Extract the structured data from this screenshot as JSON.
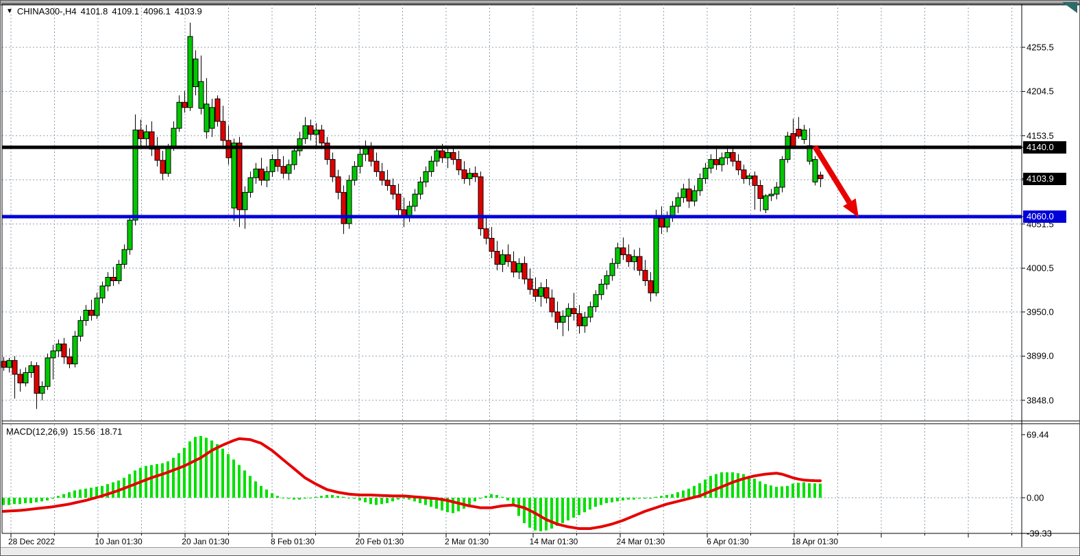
{
  "header": {
    "dropdown_icon": "▼",
    "symbol": "CHINA300-,H4",
    "open": "4101.8",
    "high": "4109.1",
    "low": "4096.1",
    "close": "4103.9"
  },
  "macd_panel": {
    "label": "MACD(12,26,9)",
    "main_value": "15.56",
    "signal_value": "18.71",
    "axis_labels": [
      {
        "text": "69.44",
        "value": 69.44
      },
      {
        "text": "0.00",
        "value": 0
      },
      {
        "text": "-39.33",
        "value": -39.33
      }
    ]
  },
  "price_axis": {
    "labels": [
      {
        "text": "4255.5",
        "price": 4255.5
      },
      {
        "text": "4204.5",
        "price": 4204.5
      },
      {
        "text": "4153.5",
        "price": 4153.5
      },
      {
        "text": "4051.5",
        "price": 4051.5
      },
      {
        "text": "4000.5",
        "price": 4000.5
      },
      {
        "text": "3950.0",
        "price": 3950.0
      },
      {
        "text": "3899.0",
        "price": 3899.0
      },
      {
        "text": "3848.0",
        "price": 3848.0
      }
    ],
    "tags": [
      {
        "text": "4140.0",
        "price": 4140.0,
        "bg": "#000000"
      },
      {
        "text": "4103.9",
        "price": 4103.9,
        "bg": "#000000"
      },
      {
        "text": "4060.0",
        "price": 4060.0,
        "bg": "#0000d8"
      }
    ]
  },
  "colors": {
    "bull": "#00c800",
    "bear": "#e00000",
    "wick": "#000000",
    "grid": "#8e9dad",
    "macd_hist": "#00e000",
    "macd_signal": "#e60000",
    "hline_black": "#000000",
    "hline_blue": "#0000d8",
    "arrow": "#e80000"
  },
  "chart_data": {
    "type": "candlestick",
    "symbol": "CHINA300-",
    "timeframe": "H4",
    "x_labels": [
      "28 Dec 2022",
      "10 Jan 01:30",
      "20 Jan 01:30",
      "8 Feb 01:30",
      "20 Feb 01:30",
      "2 Mar 01:30",
      "14 Mar 01:30",
      "24 Mar 01:30",
      "6 Apr 01:30",
      "18 Apr 01:30"
    ],
    "price_gridlines": [
      4255.5,
      4204.5,
      4153.5,
      4102.5,
      4051.5,
      4000.5,
      3950.0,
      3899.0,
      3848.0
    ],
    "visible_price_range": [
      3838,
      4290
    ],
    "hlines": [
      {
        "price": 4140.0,
        "color": "#000000",
        "width": 5
      },
      {
        "price": 4060.0,
        "color": "#0000d8",
        "width": 5
      }
    ],
    "arrow_annotation": {
      "from_bar": 148,
      "from_price": 4141,
      "to_bar": 156,
      "to_price": 4059
    },
    "candles_ohlc": [
      [
        3893,
        3898,
        3882,
        3886
      ],
      [
        3886,
        3897,
        3880,
        3894
      ],
      [
        3894,
        3899,
        3850,
        3878
      ],
      [
        3878,
        3884,
        3858,
        3868
      ],
      [
        3868,
        3886,
        3864,
        3880
      ],
      [
        3880,
        3893,
        3874,
        3888
      ],
      [
        3888,
        3892,
        3838,
        3856
      ],
      [
        3856,
        3870,
        3848,
        3864
      ],
      [
        3864,
        3902,
        3860,
        3897
      ],
      [
        3897,
        3912,
        3872,
        3905
      ],
      [
        3905,
        3918,
        3898,
        3913
      ],
      [
        3913,
        3920,
        3890,
        3898
      ],
      [
        3898,
        3908,
        3885,
        3890
      ],
      [
        3890,
        3928,
        3886,
        3922
      ],
      [
        3922,
        3945,
        3916,
        3940
      ],
      [
        3940,
        3958,
        3934,
        3952
      ],
      [
        3952,
        3964,
        3940,
        3946
      ],
      [
        3946,
        3972,
        3942,
        3966
      ],
      [
        3966,
        3985,
        3960,
        3980
      ],
      [
        3980,
        3996,
        3974,
        3990
      ],
      [
        3990,
        4002,
        3980,
        3986
      ],
      [
        3986,
        4010,
        3982,
        4005
      ],
      [
        4005,
        4028,
        4000,
        4022
      ],
      [
        4022,
        4062,
        4016,
        4056
      ],
      [
        4056,
        4178,
        4050,
        4160
      ],
      [
        4160,
        4172,
        4138,
        4150
      ],
      [
        4150,
        4166,
        4142,
        4158
      ],
      [
        4158,
        4170,
        4130,
        4138
      ],
      [
        4138,
        4152,
        4118,
        4125
      ],
      [
        4125,
        4136,
        4102,
        4110
      ],
      [
        4110,
        4144,
        4106,
        4140
      ],
      [
        4140,
        4170,
        4136,
        4162
      ],
      [
        4162,
        4200,
        4158,
        4192
      ],
      [
        4192,
        4205,
        4180,
        4186
      ],
      [
        4186,
        4284,
        4182,
        4268
      ],
      [
        4210,
        4252,
        4200,
        4242
      ],
      [
        4185,
        4246,
        4178,
        4216
      ],
      [
        4158,
        4220,
        4150,
        4190
      ],
      [
        4162,
        4196,
        4152,
        4186
      ],
      [
        4196,
        4200,
        4164,
        4170
      ],
      [
        4170,
        4188,
        4140,
        4148
      ],
      [
        4148,
        4165,
        4120,
        4128
      ],
      [
        4070,
        4150,
        4055,
        4145
      ],
      [
        4145,
        4152,
        4048,
        4068
      ],
      [
        4068,
        4095,
        4046,
        4088
      ],
      [
        4088,
        4112,
        4082,
        4105
      ],
      [
        4105,
        4122,
        4098,
        4115
      ],
      [
        4115,
        4128,
        4096,
        4102
      ],
      [
        4102,
        4118,
        4094,
        4112
      ],
      [
        4112,
        4132,
        4106,
        4126
      ],
      [
        4126,
        4138,
        4112,
        4118
      ],
      [
        4118,
        4130,
        4104,
        4110
      ],
      [
        4110,
        4126,
        4102,
        4120
      ],
      [
        4120,
        4142,
        4114,
        4136
      ],
      [
        4136,
        4158,
        4130,
        4150
      ],
      [
        4150,
        4175,
        4144,
        4165
      ],
      [
        4165,
        4172,
        4148,
        4155
      ],
      [
        4155,
        4168,
        4142,
        4160
      ],
      [
        4160,
        4166,
        4138,
        4145
      ],
      [
        4145,
        4152,
        4120,
        4126
      ],
      [
        4126,
        4134,
        4100,
        4106
      ],
      [
        4106,
        4114,
        4080,
        4088
      ],
      [
        4088,
        4096,
        4040,
        4052
      ],
      [
        4052,
        4108,
        4046,
        4102
      ],
      [
        4102,
        4124,
        4096,
        4118
      ],
      [
        4118,
        4140,
        4110,
        4132
      ],
      [
        4132,
        4148,
        4124,
        4140
      ],
      [
        4140,
        4146,
        4118,
        4124
      ],
      [
        4124,
        4134,
        4106,
        4112
      ],
      [
        4112,
        4122,
        4096,
        4102
      ],
      [
        4102,
        4114,
        4090,
        4096
      ],
      [
        4096,
        4104,
        4080,
        4086
      ],
      [
        4086,
        4098,
        4060,
        4068
      ],
      [
        4068,
        4082,
        4048,
        4060
      ],
      [
        4060,
        4078,
        4054,
        4072
      ],
      [
        4072,
        4092,
        4066,
        4086
      ],
      [
        4086,
        4106,
        4080,
        4100
      ],
      [
        4100,
        4118,
        4094,
        4112
      ],
      [
        4112,
        4130,
        4106,
        4124
      ],
      [
        4124,
        4142,
        4118,
        4136
      ],
      [
        4136,
        4144,
        4122,
        4128
      ],
      [
        4128,
        4140,
        4116,
        4134
      ],
      [
        4134,
        4142,
        4120,
        4126
      ],
      [
        4126,
        4136,
        4108,
        4114
      ],
      [
        4114,
        4124,
        4098,
        4104
      ],
      [
        4104,
        4116,
        4096,
        4110
      ],
      [
        4110,
        4118,
        4100,
        4106
      ],
      [
        4106,
        4112,
        4038,
        4046
      ],
      [
        4046,
        4060,
        4028,
        4035
      ],
      [
        4035,
        4048,
        4012,
        4020
      ],
      [
        4020,
        4032,
        3998,
        4005
      ],
      [
        4005,
        4022,
        3996,
        4016
      ],
      [
        4016,
        4028,
        4002,
        4008
      ],
      [
        4008,
        4020,
        3990,
        3996
      ],
      [
        3996,
        4012,
        3988,
        4006
      ],
      [
        4006,
        4014,
        3982,
        3988
      ],
      [
        3988,
        4000,
        3970,
        3976
      ],
      [
        3976,
        3990,
        3962,
        3968
      ],
      [
        3968,
        3984,
        3956,
        3978
      ],
      [
        3978,
        3988,
        3960,
        3966
      ],
      [
        3966,
        3976,
        3944,
        3950
      ],
      [
        3950,
        3962,
        3930,
        3938
      ],
      [
        3938,
        3952,
        3922,
        3945
      ],
      [
        3945,
        3960,
        3928,
        3954
      ],
      [
        3954,
        3972,
        3940,
        3948
      ],
      [
        3948,
        3958,
        3925,
        3934
      ],
      [
        3934,
        3950,
        3926,
        3944
      ],
      [
        3944,
        3962,
        3938,
        3956
      ],
      [
        3956,
        3975,
        3950,
        3970
      ],
      [
        3970,
        3988,
        3964,
        3982
      ],
      [
        3982,
        3998,
        3976,
        3992
      ],
      [
        3992,
        4012,
        3986,
        4006
      ],
      [
        4006,
        4030,
        4000,
        4024
      ],
      [
        4024,
        4036,
        4010,
        4016
      ],
      [
        4016,
        4028,
        4002,
        4008
      ],
      [
        4008,
        4022,
        3998,
        4014
      ],
      [
        4014,
        4024,
        3992,
        3998
      ],
      [
        3998,
        4010,
        3980,
        3986
      ],
      [
        3986,
        3996,
        3962,
        3972
      ],
      [
        3972,
        4068,
        3968,
        4058
      ],
      [
        4058,
        4072,
        4040,
        4048
      ],
      [
        4048,
        4066,
        4042,
        4060
      ],
      [
        4060,
        4078,
        4054,
        4072
      ],
      [
        4072,
        4088,
        4064,
        4082
      ],
      [
        4082,
        4098,
        4076,
        4092
      ],
      [
        4092,
        4104,
        4070,
        4078
      ],
      [
        4078,
        4096,
        4072,
        4090
      ],
      [
        4090,
        4110,
        4084,
        4104
      ],
      [
        4104,
        4122,
        4098,
        4116
      ],
      [
        4116,
        4132,
        4110,
        4126
      ],
      [
        4126,
        4138,
        4114,
        4120
      ],
      [
        4120,
        4134,
        4112,
        4128
      ],
      [
        4128,
        4142,
        4120,
        4134
      ],
      [
        4134,
        4140,
        4118,
        4124
      ],
      [
        4124,
        4132,
        4108,
        4114
      ],
      [
        4114,
        4120,
        4098,
        4104
      ],
      [
        4104,
        4110,
        4096,
        4107
      ],
      [
        4107,
        4112,
        4068,
        4096
      ],
      [
        4096,
        4102,
        4066,
        4081
      ],
      [
        4068,
        4086,
        4064,
        4084
      ],
      [
        4084,
        4092,
        4078,
        4086
      ],
      [
        4086,
        4100,
        4080,
        4094
      ],
      [
        4094,
        4130,
        4088,
        4126
      ],
      [
        4126,
        4158,
        4122,
        4153
      ],
      [
        4156,
        4173,
        4138,
        4140
      ],
      [
        4161,
        4175,
        4150,
        4153
      ],
      [
        4149,
        4166,
        4144,
        4160
      ],
      [
        4124,
        4162,
        4120,
        4142
      ],
      [
        4100,
        4130,
        4096,
        4126
      ],
      [
        4108,
        4112,
        4094,
        4103.9
      ]
    ],
    "macd_histogram": [
      -8,
      -8,
      -7,
      -7,
      -6,
      -6,
      -5,
      -4,
      -3,
      -1,
      2,
      4,
      6,
      8,
      9,
      10,
      11,
      12,
      13,
      15,
      17,
      19,
      22,
      26,
      30,
      33,
      35,
      36,
      37,
      38,
      40,
      44,
      49,
      55,
      62,
      67,
      68,
      66,
      63,
      59,
      54,
      48,
      42,
      36,
      30,
      24,
      18,
      13,
      9,
      5,
      2,
      0,
      -1,
      -2,
      -2,
      -1,
      0,
      1,
      2,
      3,
      3,
      2,
      1,
      0,
      -1,
      -3,
      -5,
      -7,
      -8,
      -7,
      -6,
      -4,
      -2,
      -1,
      -2,
      -4,
      -6,
      -8,
      -10,
      -12,
      -14,
      -16,
      -17,
      -15,
      -12,
      -8,
      -4,
      -1,
      2,
      4,
      3,
      1,
      -3,
      -8,
      -20,
      -28,
      -33,
      -36,
      -37,
      -36,
      -34,
      -31,
      -28,
      -25,
      -22,
      -19,
      -16,
      -13,
      -10,
      -8,
      -6,
      -5,
      -4,
      -3,
      -2,
      -2,
      -1,
      -1,
      -1,
      1,
      2,
      3,
      4,
      6,
      8,
      10,
      13,
      16,
      20,
      24,
      26,
      28,
      28,
      28,
      27,
      26,
      24,
      21,
      18,
      15,
      13.5,
      12,
      12.5,
      13,
      15.5,
      16.5,
      17,
      16,
      15.8,
      15.56
    ],
    "macd_signal_keyframes": [
      [
        0,
        -15
      ],
      [
        3,
        -14
      ],
      [
        6,
        -12
      ],
      [
        9,
        -10
      ],
      [
        12,
        -7
      ],
      [
        15,
        -3
      ],
      [
        18,
        2
      ],
      [
        21,
        8
      ],
      [
        24,
        15
      ],
      [
        27,
        22
      ],
      [
        30,
        28
      ],
      [
        33,
        35
      ],
      [
        36,
        44
      ],
      [
        38,
        52
      ],
      [
        40,
        58
      ],
      [
        42,
        63
      ],
      [
        43,
        65
      ],
      [
        45,
        64
      ],
      [
        47,
        60
      ],
      [
        49,
        52
      ],
      [
        51,
        42
      ],
      [
        53,
        32
      ],
      [
        55,
        22
      ],
      [
        57,
        15
      ],
      [
        59,
        9
      ],
      [
        61,
        6
      ],
      [
        63,
        4
      ],
      [
        65,
        3
      ],
      [
        67,
        3
      ],
      [
        69,
        2.5
      ],
      [
        71,
        2
      ],
      [
        73,
        2
      ],
      [
        75,
        1
      ],
      [
        77,
        0
      ],
      [
        79,
        -1
      ],
      [
        81,
        -3
      ],
      [
        83,
        -6
      ],
      [
        85,
        -9
      ],
      [
        87,
        -11
      ],
      [
        89,
        -11
      ],
      [
        91,
        -9
      ],
      [
        93,
        -8
      ],
      [
        95,
        -11
      ],
      [
        97,
        -17
      ],
      [
        99,
        -24
      ],
      [
        101,
        -29
      ],
      [
        103,
        -32
      ],
      [
        105,
        -34
      ],
      [
        107,
        -34
      ],
      [
        109,
        -32
      ],
      [
        111,
        -29
      ],
      [
        113,
        -25
      ],
      [
        115,
        -20
      ],
      [
        117,
        -15
      ],
      [
        119,
        -11
      ],
      [
        121,
        -7
      ],
      [
        123,
        -4
      ],
      [
        125,
        -1
      ],
      [
        127,
        2
      ],
      [
        129,
        7
      ],
      [
        131,
        12
      ],
      [
        133,
        17
      ],
      [
        135,
        21
      ],
      [
        137,
        24
      ],
      [
        139,
        26
      ],
      [
        141,
        27
      ],
      [
        142,
        26
      ],
      [
        143,
        24
      ],
      [
        144,
        22
      ],
      [
        145,
        20.5
      ],
      [
        146,
        19.5
      ],
      [
        147,
        19
      ],
      [
        148,
        18.8
      ],
      [
        149,
        18.71
      ]
    ]
  }
}
